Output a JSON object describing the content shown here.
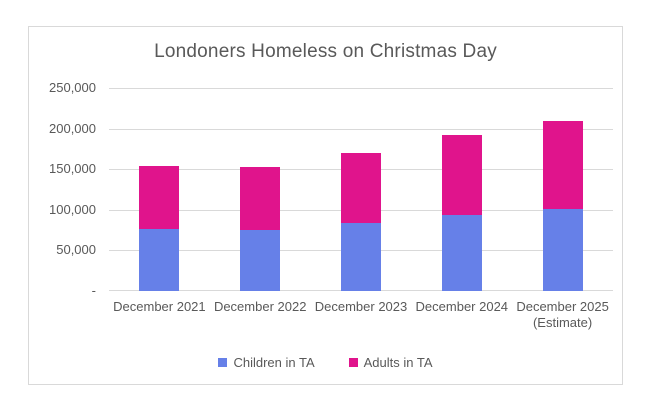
{
  "page": {
    "background": "#FFFFFF",
    "frame_border_color": "#D9D9D9",
    "text_color": "#595959",
    "grid_color": "#D9D9D9"
  },
  "chart_data": {
    "type": "bar",
    "stacked": true,
    "title": "Londoners Homeless on Christmas Day",
    "categories": [
      "December 2021",
      "December 2022",
      "December 2023",
      "December 2024",
      "December 2025"
    ],
    "category_sublabels": [
      "",
      "",
      "",
      "",
      "(Estimate)"
    ],
    "series": [
      {
        "name": "Children in TA",
        "color": "#6680E8",
        "values": [
          76000,
          75000,
          84000,
          94000,
          101000
        ]
      },
      {
        "name": "Adults in TA",
        "color": "#E0148C",
        "values": [
          78000,
          78000,
          86000,
          98000,
          109000
        ]
      }
    ],
    "y_ticks": [
      {
        "value": 250000,
        "label": "250,000"
      },
      {
        "value": 200000,
        "label": "200,000"
      },
      {
        "value": 150000,
        "label": "150,000"
      },
      {
        "value": 100000,
        "label": "100,000"
      },
      {
        "value": 50000,
        "label": "50,000"
      },
      {
        "value": 0,
        "label": "-"
      }
    ],
    "ylim": [
      0,
      250000
    ],
    "xlabel": "",
    "ylabel": "",
    "grid": true,
    "legend_position": "bottom"
  }
}
